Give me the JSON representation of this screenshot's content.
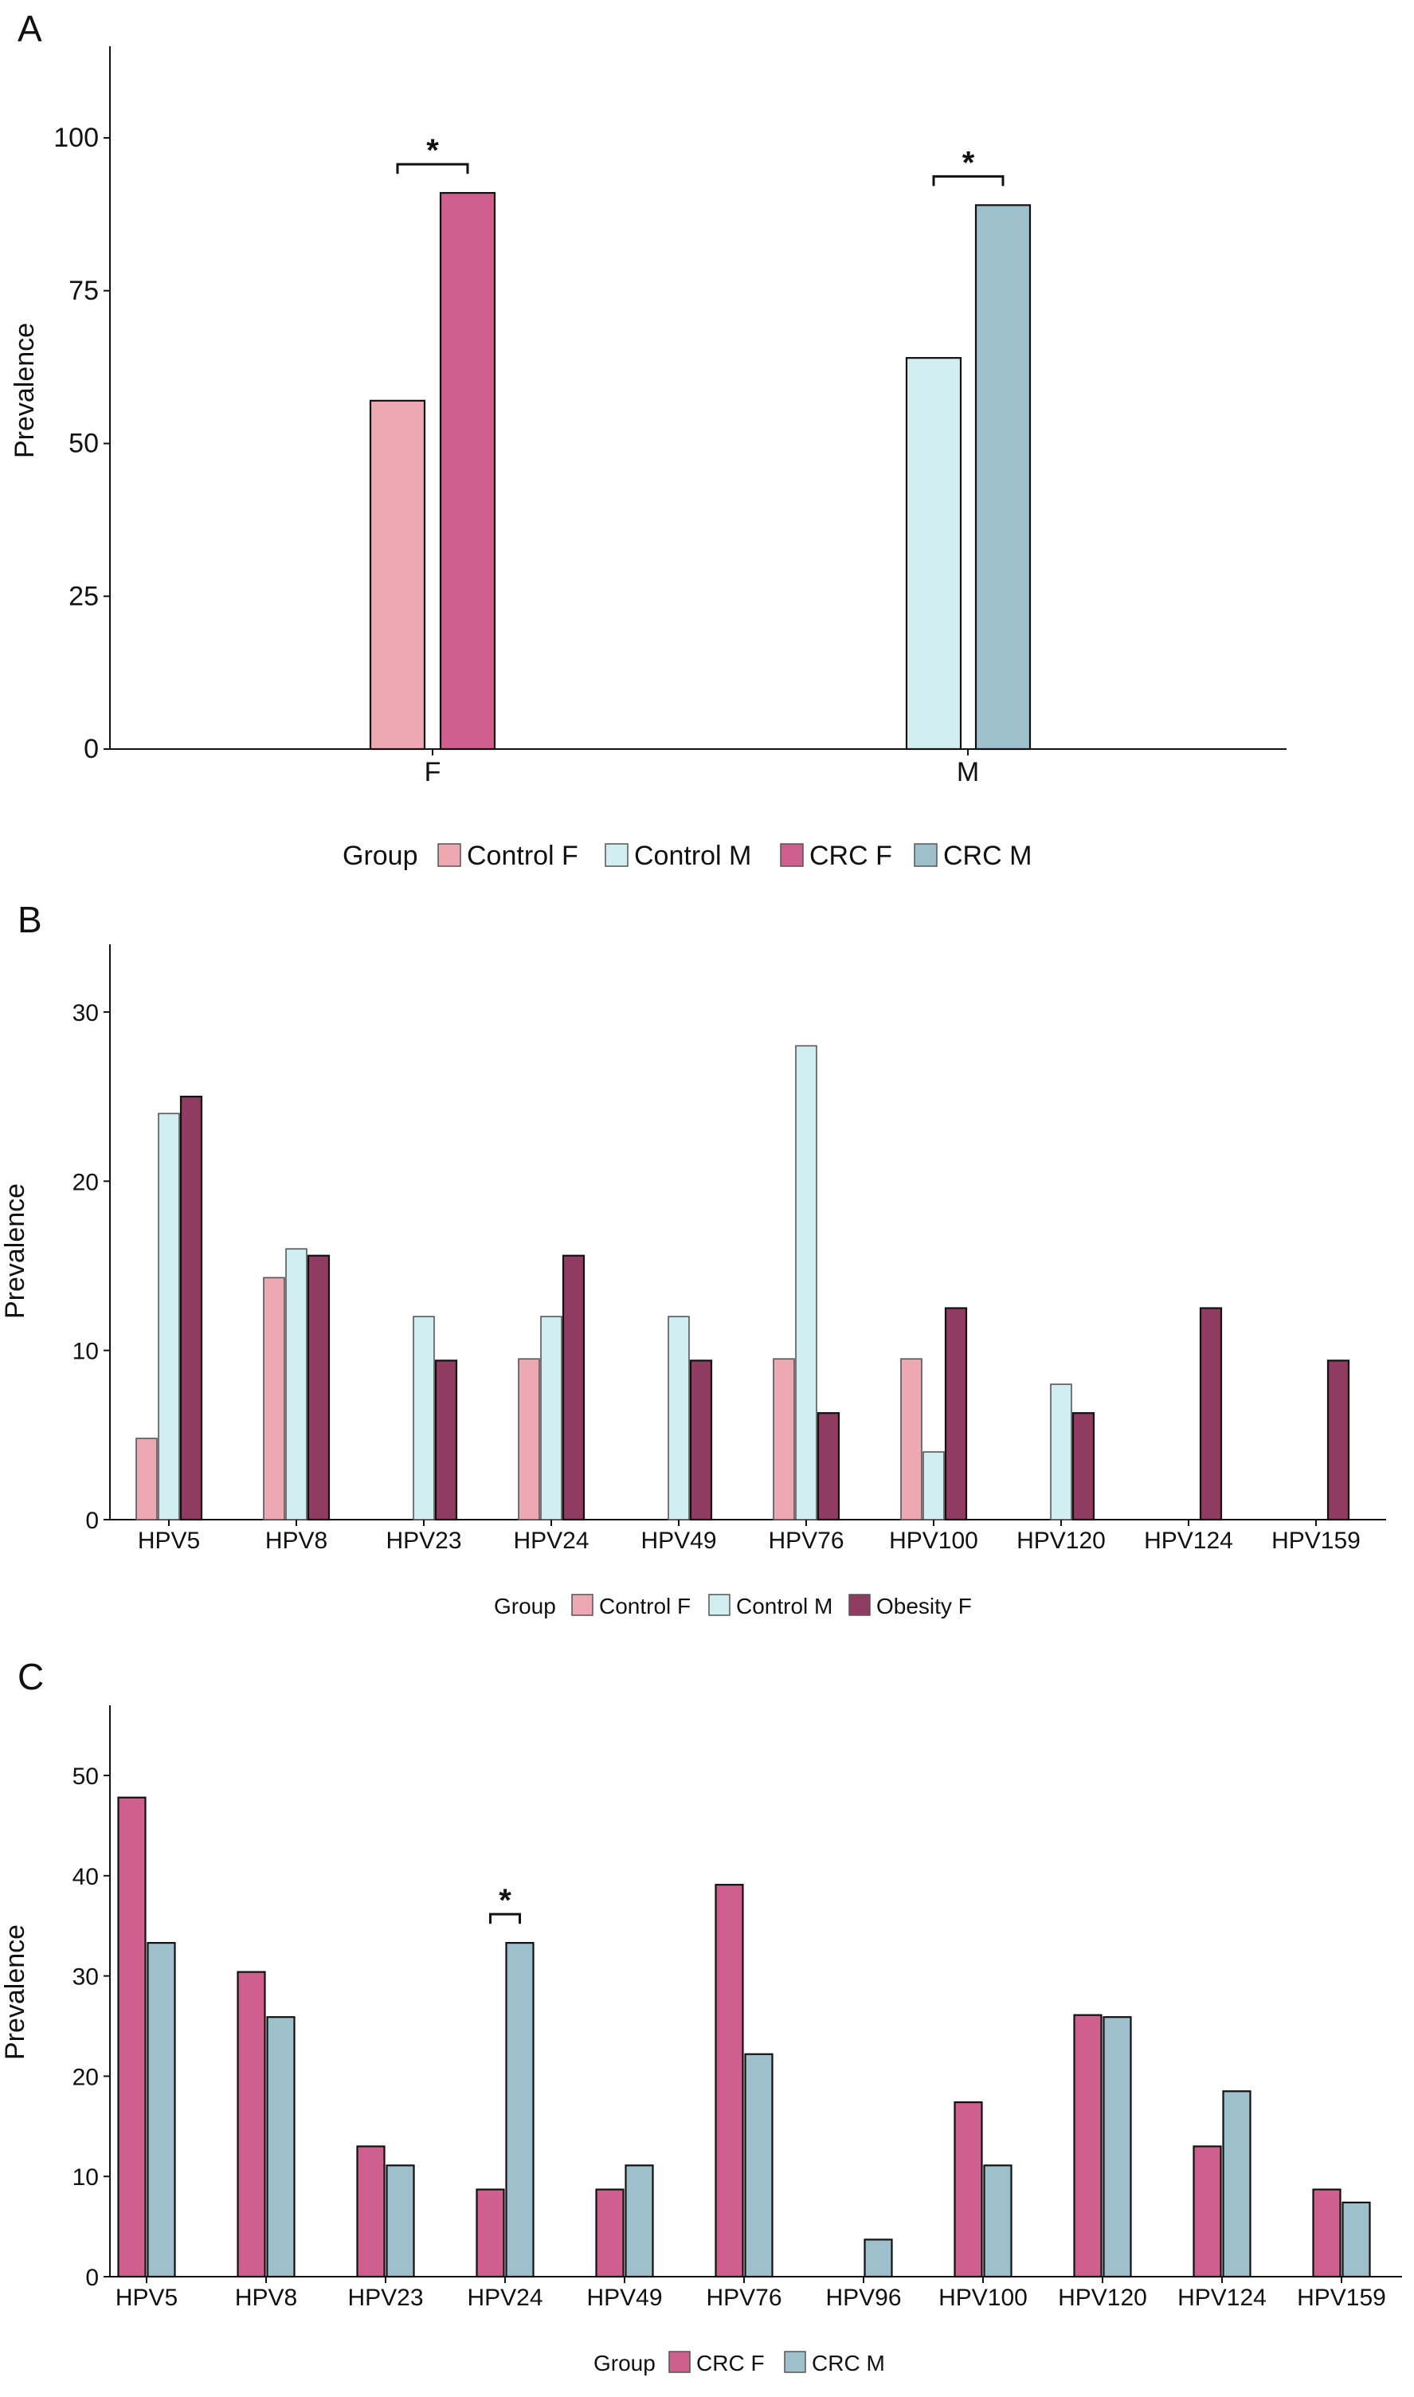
{
  "colors": {
    "control_f": "#eea8b1",
    "control_m": "#d3eef0",
    "crc_f": "#ce5f8e",
    "crc_m": "#9ec0cd",
    "obesity_f": "#8f3b62"
  },
  "chart_data": [
    {
      "id": "A",
      "panel_label": "A",
      "type": "bar",
      "ylabel": "Prevalence",
      "ylim": [
        0,
        115
      ],
      "yticks": [
        0,
        25,
        50,
        75,
        100
      ],
      "categories": [
        "F",
        "M"
      ],
      "series": [
        {
          "name": "Control F",
          "color_key": "control_f",
          "values": [
            57,
            null
          ]
        },
        {
          "name": "Control M",
          "color_key": "control_m",
          "values": [
            null,
            64
          ]
        },
        {
          "name": "CRC F",
          "color_key": "crc_f",
          "values": [
            91,
            null
          ]
        },
        {
          "name": "CRC M",
          "color_key": "crc_m",
          "values": [
            null,
            89
          ]
        }
      ],
      "significance": [
        {
          "category": "F",
          "label": "*"
        },
        {
          "category": "M",
          "label": "*"
        }
      ],
      "legend_title": "Group",
      "legend": [
        "Control F",
        "Control M",
        "CRC F",
        "CRC M"
      ]
    },
    {
      "id": "B",
      "panel_label": "B",
      "type": "bar",
      "ylabel": "Prevalence",
      "ylim": [
        0,
        34
      ],
      "yticks": [
        0,
        10,
        20,
        30
      ],
      "categories": [
        "HPV5",
        "HPV8",
        "HPV23",
        "HPV24",
        "HPV49",
        "HPV76",
        "HPV100",
        "HPV120",
        "HPV124",
        "HPV159"
      ],
      "series": [
        {
          "name": "Control F",
          "color_key": "control_f",
          "values": [
            4.8,
            14.3,
            0,
            9.5,
            0,
            9.5,
            9.5,
            0,
            0,
            0
          ]
        },
        {
          "name": "Control M",
          "color_key": "control_m",
          "values": [
            24,
            16,
            12,
            12,
            12,
            28,
            4,
            8,
            0,
            0
          ]
        },
        {
          "name": "Obesity F",
          "color_key": "obesity_f",
          "values": [
            25,
            15.6,
            9.4,
            15.6,
            9.4,
            6.3,
            12.5,
            6.3,
            12.5,
            9.4
          ]
        }
      ],
      "significance": [],
      "legend_title": "Group",
      "legend": [
        "Control F",
        "Control M",
        "Obesity F"
      ]
    },
    {
      "id": "C",
      "panel_label": "C",
      "type": "bar",
      "ylabel": "Prevalence",
      "ylim": [
        0,
        57
      ],
      "yticks": [
        0,
        10,
        20,
        30,
        40,
        50
      ],
      "categories": [
        "HPV5",
        "HPV8",
        "HPV23",
        "HPV24",
        "HPV49",
        "HPV76",
        "HPV96",
        "HPV100",
        "HPV120",
        "HPV124",
        "HPV159"
      ],
      "series": [
        {
          "name": "CRC F",
          "color_key": "crc_f",
          "values": [
            47.8,
            30.4,
            13,
            8.7,
            8.7,
            39.1,
            0,
            17.4,
            26.1,
            13,
            8.7
          ]
        },
        {
          "name": "CRC M",
          "color_key": "crc_m",
          "values": [
            33.3,
            25.9,
            11.1,
            33.3,
            11.1,
            22.2,
            3.7,
            11.1,
            25.9,
            18.5,
            7.4
          ]
        }
      ],
      "significance": [
        {
          "category": "HPV24",
          "label": "*"
        }
      ],
      "legend_title": "Group",
      "legend": [
        "CRC F",
        "CRC M"
      ]
    }
  ]
}
